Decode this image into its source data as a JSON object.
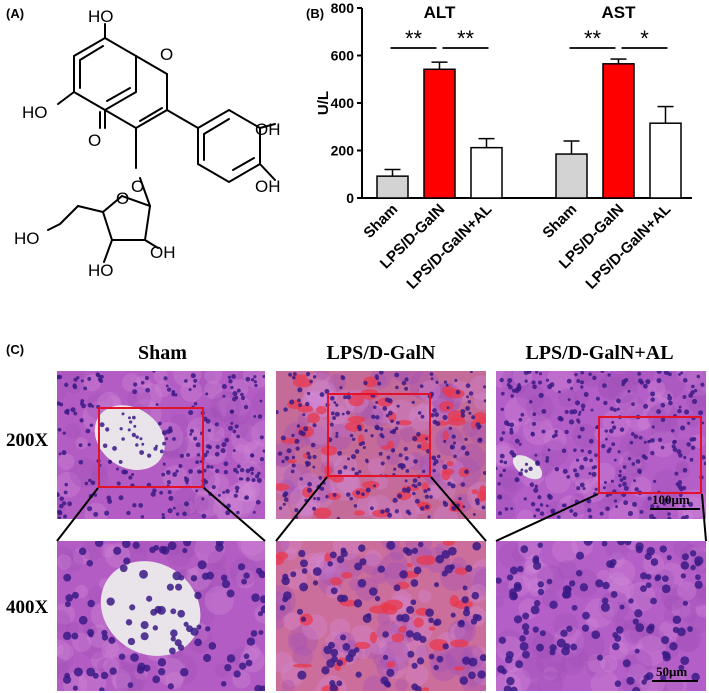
{
  "panels": {
    "a_label": "(A)",
    "b_label": "(B)",
    "c_label": "(C)"
  },
  "molecule": {
    "atoms": [
      "HO",
      "HO",
      "O",
      "O",
      "OH",
      "OH",
      "O",
      "HO",
      "O",
      "OH",
      "HO"
    ]
  },
  "chart_data": {
    "type": "bar",
    "ylabel": "U/L",
    "ylim": [
      0,
      800
    ],
    "yticks": [
      "0",
      "200",
      "400",
      "600",
      "800"
    ],
    "groups": [
      {
        "title": "ALT",
        "categories": [
          "Sham",
          "LPS/D-GalN",
          "LPS/D-GalN+AL"
        ],
        "values": [
          92,
          542,
          212
        ],
        "errors": [
          28,
          30,
          38
        ],
        "colors": [
          "#d3d3d3",
          "#ff0000",
          "#ffffff"
        ],
        "significance": [
          "**",
          "**"
        ]
      },
      {
        "title": "AST",
        "categories": [
          "Sham",
          "LPS/D-GalN",
          "LPS/D-GalN+AL"
        ],
        "values": [
          185,
          565,
          315
        ],
        "errors": [
          55,
          20,
          70
        ],
        "colors": [
          "#d3d3d3",
          "#ff0000",
          "#ffffff"
        ],
        "significance": [
          "**",
          "*"
        ]
      }
    ]
  },
  "histology": {
    "columns": [
      "Sham",
      "LPS/D-GalN",
      "LPS/D-GalN+AL"
    ],
    "rows": [
      "200X",
      "400X"
    ],
    "scale_200": "100μm",
    "scale_400": "50μm",
    "roi_color": "#e3122b",
    "stain_color": "#b25cc4"
  }
}
